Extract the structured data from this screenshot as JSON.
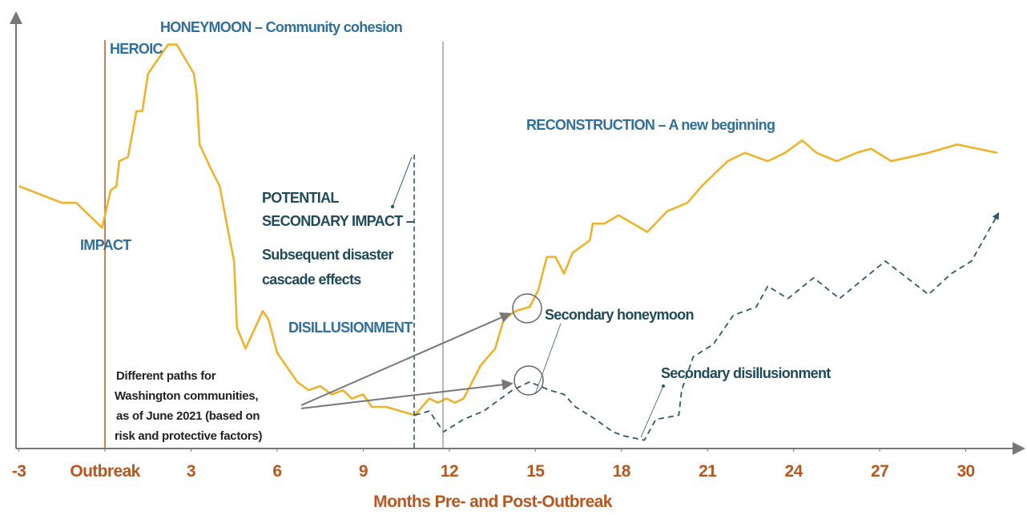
{
  "chart_data": {
    "type": "line",
    "x_label": "Months Pre- and Post-Outbreak",
    "xlim": [
      -3.1,
      31.8
    ],
    "xticks": [
      -3,
      {
        "value": 0,
        "label": "Outbreak"
      },
      3,
      6,
      9,
      12,
      15,
      18,
      21,
      24,
      27,
      30
    ],
    "ylim": [
      0,
      100
    ],
    "series": [
      {
        "color": "#f0b22a",
        "dashed": false,
        "x": [
          -3.0,
          -1.5,
          -1.0,
          -0.1,
          0.2,
          0.4,
          0.5,
          0.8,
          1.1,
          1.3,
          1.5,
          2.1,
          2.2,
          2.5,
          3.1,
          3.2,
          3.3,
          3.7,
          4.0,
          4.3,
          4.5,
          4.6,
          4.9,
          5.5,
          5.7,
          6.0,
          6.4,
          6.7,
          7.1,
          7.5,
          7.9,
          8.3,
          8.6,
          9.0,
          9.3,
          9.8,
          10.3,
          10.8,
          11.3,
          11.6,
          11.9,
          12.2,
          12.5,
          13.1,
          13.6,
          13.9,
          14.3,
          14.8,
          15.1,
          15.4,
          15.7,
          16.0,
          16.3,
          16.9,
          17.0,
          17.4,
          17.9,
          18.9,
          19.6,
          20.3,
          20.8,
          21.7,
          22.3,
          23.1,
          23.7,
          24.3,
          24.8,
          25.5,
          26.2,
          26.7,
          27.4,
          28.7,
          29.7,
          31.1
        ],
        "values": [
          63,
          59,
          59,
          53,
          62,
          63,
          69,
          70,
          81,
          81,
          90,
          96,
          97,
          97,
          90,
          85,
          73,
          67,
          63,
          52,
          45,
          29,
          24,
          33,
          31,
          23,
          19,
          16,
          14,
          15,
          13,
          14,
          12,
          13,
          10,
          10,
          9,
          8,
          12,
          11,
          12,
          11,
          12,
          20,
          24,
          31,
          33,
          34,
          38,
          46,
          46,
          42,
          47,
          50,
          54,
          54,
          56,
          52,
          57,
          59,
          63,
          69,
          71,
          69,
          71,
          74,
          71,
          69,
          71,
          72,
          69,
          71,
          73,
          71
        ]
      },
      {
        "color": "#2d5a6a",
        "dashed": true,
        "x": [
          10.8,
          11.3,
          11.8,
          12.5,
          13.2,
          13.6,
          14.2,
          14.8,
          15.5,
          16.0,
          16.4,
          17.1,
          17.7,
          18.1,
          18.8,
          19.2,
          20.0,
          20.1,
          20.5,
          21.2,
          21.7,
          21.9,
          22.7,
          23.1,
          23.8,
          24.7,
          25.6,
          27.2,
          28.7,
          29.5,
          30.2,
          31.1
        ],
        "values": [
          8,
          9,
          4,
          7,
          9,
          11,
          14,
          16,
          14,
          13,
          10,
          7,
          4,
          3,
          2,
          7,
          8,
          14,
          22,
          25,
          30,
          32,
          34,
          39,
          36,
          41,
          36,
          45,
          37,
          42,
          45,
          56
        ]
      }
    ],
    "annotations": {
      "honeymoon": "HONEYMOON – Community cohesion",
      "heroic": "HEROIC",
      "impact": "IMPACT",
      "reconstruction": "RECONSTRUCTION – A new beginning",
      "secondary_impact": [
        "POTENTIAL",
        "SECONDARY IMPACT –",
        "Subsequent disaster",
        "cascade effects"
      ],
      "disillusionment": "DISILLUSIONMENT",
      "secondary_honeymoon": "Secondary honeymoon",
      "secondary_disillusionment": "Secondary disillusionment",
      "paths_note": [
        "Different paths for",
        "Washington communities,",
        "as of June 2021 (based on",
        "risk and protective factors)"
      ]
    }
  }
}
